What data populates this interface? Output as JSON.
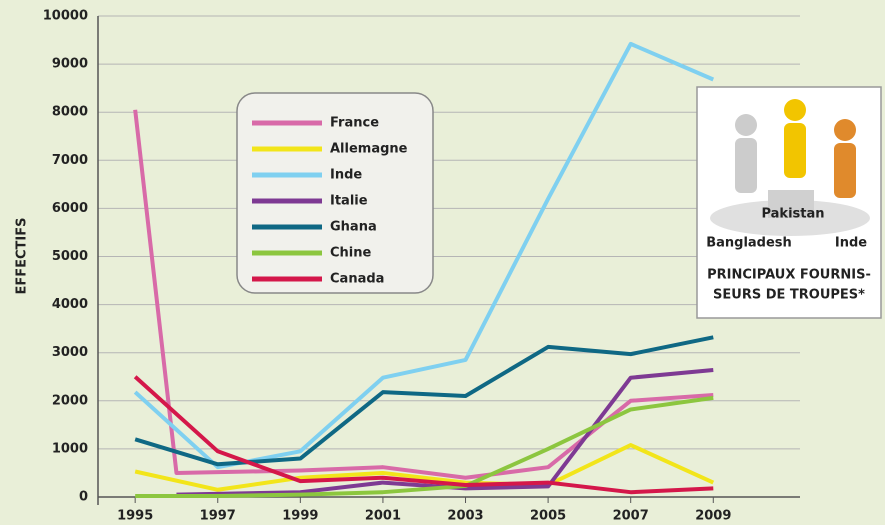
{
  "chart_data": {
    "type": "line",
    "y_label": "EFFECTIFS",
    "xlim": [
      1994.1,
      2011.1
    ],
    "xticks": [
      1995,
      1997,
      1999,
      2001,
      2003,
      2005,
      2007,
      2009
    ],
    "ylim": [
      0,
      10000
    ],
    "yticks": [
      0,
      1000,
      2000,
      3000,
      4000,
      5000,
      6000,
      7000,
      8000,
      9000,
      10000
    ],
    "grid": true,
    "legend": "upper left",
    "series": [
      {
        "name": "France",
        "color": "#d86aa8",
        "x": [
          1995,
          1996,
          1999,
          2001,
          2003,
          2005,
          2007,
          2009
        ],
        "values": [
          8050,
          500,
          550,
          620,
          400,
          620,
          2000,
          2120
        ]
      },
      {
        "name": "Allemagne",
        "color": "#f2e51a",
        "x": [
          1995,
          1997,
          1999,
          2001,
          2003,
          2005,
          2007,
          2009
        ],
        "values": [
          530,
          150,
          400,
          500,
          300,
          250,
          1080,
          300
        ]
      },
      {
        "name": "Inde",
        "color": "#7fd0f0",
        "x": [
          1995,
          1997,
          1999,
          2001,
          2003,
          2005,
          2007,
          2009
        ],
        "values": [
          2180,
          620,
          950,
          2480,
          2850,
          6200,
          9420,
          8680
        ]
      },
      {
        "name": "Italie",
        "color": "#7e3a93",
        "x": [
          1996,
          1999,
          2001,
          2003,
          2005,
          2007,
          2009
        ],
        "values": [
          50,
          100,
          300,
          180,
          220,
          2480,
          2640
        ]
      },
      {
        "name": "Ghana",
        "color": "#0f6884",
        "x": [
          1995,
          1997,
          1999,
          2001,
          2003,
          2005,
          2007,
          2009
        ],
        "values": [
          1200,
          680,
          800,
          2180,
          2100,
          3120,
          2970,
          3320
        ]
      },
      {
        "name": "Chine",
        "color": "#8cc63f",
        "x": [
          1995,
          1997,
          1999,
          2001,
          2003,
          2005,
          2007,
          2009
        ],
        "values": [
          20,
          20,
          50,
          100,
          230,
          1000,
          1820,
          2060
        ]
      },
      {
        "name": "Canada",
        "color": "#d4174a",
        "x": [
          1995,
          1997,
          1999,
          2001,
          2003,
          2005,
          2007,
          2009
        ],
        "values": [
          2500,
          950,
          330,
          400,
          250,
          300,
          100,
          180
        ]
      }
    ],
    "inset": {
      "labels": [
        "Pakistan",
        "Bangladesh",
        "Inde"
      ],
      "caption": [
        "PRINCIPAUX FOURNIS-",
        "SEURS DE TROUPES*"
      ]
    }
  }
}
